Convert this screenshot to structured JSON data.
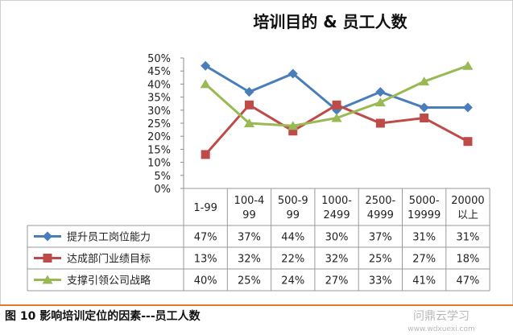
{
  "chart_data": {
    "type": "line",
    "title": "培训目的 & 员工人数",
    "categories": [
      "1-99",
      "100-4\n99",
      "500-9\n99",
      "1000-\n2499",
      "2500-\n4999",
      "5000-\n19999",
      "20000\n以上"
    ],
    "ylim": [
      0,
      50
    ],
    "y_ticks": [
      "0%",
      "5%",
      "10%",
      "15%",
      "20%",
      "25%",
      "30%",
      "35%",
      "40%",
      "45%",
      "50%"
    ],
    "legend": "data-table",
    "grid": false,
    "series": [
      {
        "name": "提升员工岗位能力",
        "color": "#4a7ebb",
        "marker": "diamond",
        "values": [
          47,
          37,
          44,
          30,
          37,
          31,
          31
        ],
        "labels": [
          "47%",
          "37%",
          "44%",
          "30%",
          "37%",
          "31%",
          "31%"
        ]
      },
      {
        "name": "达成部门业绩目标",
        "color": "#be4b48",
        "marker": "square",
        "values": [
          13,
          32,
          22,
          32,
          25,
          27,
          18
        ],
        "labels": [
          "13%",
          "32%",
          "22%",
          "32%",
          "25%",
          "27%",
          "18%"
        ]
      },
      {
        "name": "支撑引领公司战略",
        "color": "#98b954",
        "marker": "triangle",
        "values": [
          40,
          25,
          24,
          27,
          33,
          41,
          47
        ],
        "labels": [
          "40%",
          "25%",
          "24%",
          "27%",
          "33%",
          "41%",
          "47%"
        ]
      }
    ]
  },
  "caption": "图 10 影响培训定位的因素---员工人数",
  "watermark": "问鼎云学习",
  "watermark_url": "www.wdxuexi.com",
  "colors": {
    "frame": "#b0b0b0",
    "caption_rule": "#e07b2c"
  }
}
